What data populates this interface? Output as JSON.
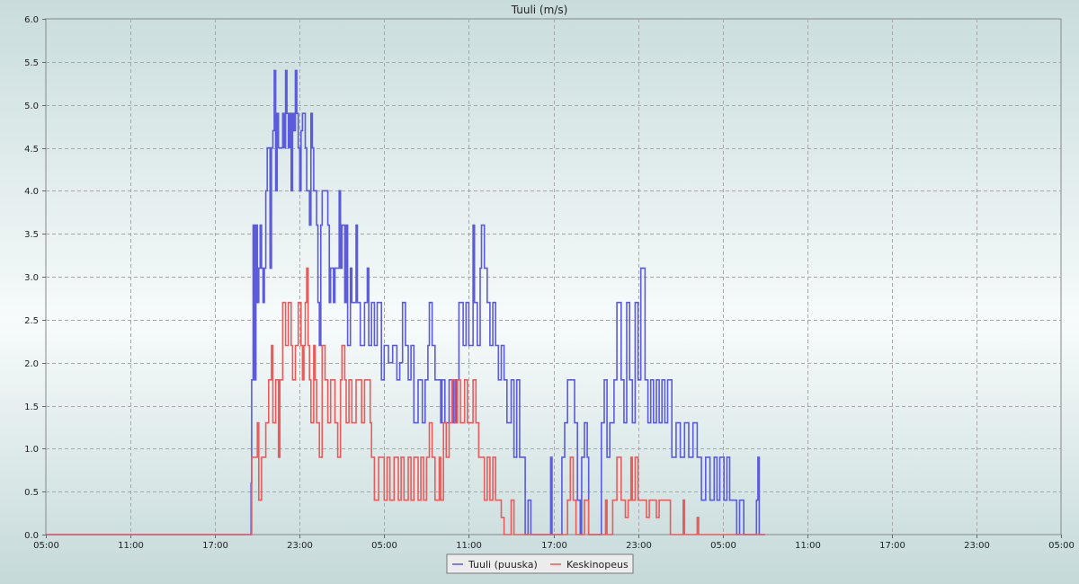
{
  "chart_data": {
    "type": "line",
    "step": true,
    "title": "Tuuli (m/s)",
    "xlabel": "",
    "ylabel": "",
    "ylim": [
      0,
      6
    ],
    "xlim": [
      "05:00",
      "05:00 (+2 d)"
    ],
    "x_ticks": [
      "05:00",
      "11:00",
      "17:00",
      "23:00",
      "05:00",
      "11:00",
      "17:00",
      "23:00",
      "05:00",
      "11:00",
      "17:00",
      "23:00",
      "05:00"
    ],
    "y_ticks": [
      "0.0",
      "0.5",
      "1.0",
      "1.5",
      "2.0",
      "2.5",
      "3.0",
      "3.5",
      "4.0",
      "4.5",
      "5.0",
      "5.5",
      "6.0"
    ],
    "grid": true,
    "legend_position": "bottom-center",
    "hours_per_x_tick": 6,
    "series": [
      {
        "name": "Tuuli (puuska)",
        "color": "#5b5bdc",
        "points": [
          [
            0,
            0
          ],
          [
            14.5,
            0
          ],
          [
            14.55,
            0.6
          ],
          [
            14.6,
            1.8
          ],
          [
            14.7,
            3.6
          ],
          [
            14.8,
            1.8
          ],
          [
            14.9,
            3.6
          ],
          [
            15.0,
            2.7
          ],
          [
            15.1,
            3.1
          ],
          [
            15.2,
            3.6
          ],
          [
            15.3,
            3.1
          ],
          [
            15.4,
            2.7
          ],
          [
            15.5,
            3.1
          ],
          [
            15.6,
            4.0
          ],
          [
            15.7,
            4.5
          ],
          [
            15.9,
            3.1
          ],
          [
            16.0,
            4.5
          ],
          [
            16.1,
            4.7
          ],
          [
            16.2,
            5.4
          ],
          [
            16.3,
            4.0
          ],
          [
            16.4,
            4.9
          ],
          [
            16.5,
            4.5
          ],
          [
            16.8,
            4.9
          ],
          [
            16.9,
            4.5
          ],
          [
            17.0,
            5.4
          ],
          [
            17.1,
            4.9
          ],
          [
            17.2,
            4.5
          ],
          [
            17.3,
            4.9
          ],
          [
            17.4,
            4.0
          ],
          [
            17.5,
            4.9
          ],
          [
            17.6,
            4.7
          ],
          [
            17.7,
            5.4
          ],
          [
            17.8,
            4.9
          ],
          [
            17.9,
            4.5
          ],
          [
            18.0,
            4.0
          ],
          [
            18.1,
            4.7
          ],
          [
            18.2,
            4.9
          ],
          [
            18.4,
            4.5
          ],
          [
            18.5,
            4.0
          ],
          [
            18.7,
            3.6
          ],
          [
            18.8,
            4.9
          ],
          [
            18.9,
            4.5
          ],
          [
            19.0,
            4.0
          ],
          [
            19.2,
            3.6
          ],
          [
            19.3,
            2.7
          ],
          [
            19.4,
            2.2
          ],
          [
            19.5,
            3.6
          ],
          [
            19.6,
            4.0
          ],
          [
            20.0,
            3.6
          ],
          [
            20.1,
            2.7
          ],
          [
            20.2,
            3.1
          ],
          [
            20.4,
            2.7
          ],
          [
            20.5,
            3.1
          ],
          [
            20.8,
            4.0
          ],
          [
            20.9,
            3.1
          ],
          [
            21.0,
            3.6
          ],
          [
            21.2,
            2.7
          ],
          [
            21.3,
            3.6
          ],
          [
            21.4,
            2.2
          ],
          [
            21.6,
            3.1
          ],
          [
            21.7,
            2.7
          ],
          [
            22.0,
            3.6
          ],
          [
            22.1,
            2.7
          ],
          [
            22.3,
            2.2
          ],
          [
            22.6,
            2.7
          ],
          [
            22.8,
            3.1
          ],
          [
            22.9,
            2.2
          ],
          [
            23.1,
            2.7
          ],
          [
            23.3,
            2.2
          ],
          [
            23.5,
            2.7
          ],
          [
            23.8,
            1.8
          ],
          [
            24.0,
            2.2
          ],
          [
            24.3,
            2.0
          ],
          [
            24.6,
            2.2
          ],
          [
            24.9,
            1.8
          ],
          [
            25.1,
            2.0
          ],
          [
            25.3,
            2.7
          ],
          [
            25.5,
            2.2
          ],
          [
            25.7,
            1.8
          ],
          [
            25.9,
            2.2
          ],
          [
            26.1,
            1.3
          ],
          [
            26.4,
            1.8
          ],
          [
            26.7,
            1.3
          ],
          [
            26.9,
            1.8
          ],
          [
            27.1,
            2.2
          ],
          [
            27.2,
            2.7
          ],
          [
            27.4,
            2.2
          ],
          [
            27.6,
            1.8
          ],
          [
            28.0,
            1.3
          ],
          [
            28.1,
            1.8
          ],
          [
            28.3,
            1.3
          ],
          [
            28.6,
            1.8
          ],
          [
            28.9,
            1.3
          ],
          [
            29.1,
            1.8
          ],
          [
            29.3,
            2.7
          ],
          [
            29.6,
            2.2
          ],
          [
            29.8,
            2.7
          ],
          [
            30.0,
            2.2
          ],
          [
            30.3,
            3.6
          ],
          [
            30.4,
            2.7
          ],
          [
            30.6,
            2.2
          ],
          [
            30.8,
            3.1
          ],
          [
            30.9,
            3.6
          ],
          [
            31.1,
            3.1
          ],
          [
            31.3,
            2.7
          ],
          [
            31.5,
            2.2
          ],
          [
            31.7,
            2.7
          ],
          [
            31.9,
            2.2
          ],
          [
            32.1,
            1.8
          ],
          [
            32.3,
            2.2
          ],
          [
            32.5,
            1.8
          ],
          [
            32.7,
            1.3
          ],
          [
            33.0,
            1.8
          ],
          [
            33.2,
            0.9
          ],
          [
            33.4,
            1.8
          ],
          [
            33.6,
            0.9
          ],
          [
            34.0,
            0
          ],
          [
            34.2,
            0.4
          ],
          [
            34.4,
            0
          ],
          [
            35.8,
            0.9
          ],
          [
            35.9,
            0
          ],
          [
            36.6,
            0.9
          ],
          [
            36.8,
            1.3
          ],
          [
            37.0,
            1.8
          ],
          [
            37.5,
            1.3
          ],
          [
            37.7,
            0.4
          ],
          [
            37.9,
            0
          ],
          [
            38.0,
            0.9
          ],
          [
            38.2,
            1.3
          ],
          [
            38.4,
            0.9
          ],
          [
            38.5,
            0
          ],
          [
            39.4,
            1.3
          ],
          [
            39.6,
            1.8
          ],
          [
            39.8,
            0.9
          ],
          [
            40.0,
            1.3
          ],
          [
            40.3,
            1.8
          ],
          [
            40.5,
            2.7
          ],
          [
            40.8,
            1.8
          ],
          [
            41.0,
            1.3
          ],
          [
            41.2,
            2.7
          ],
          [
            41.4,
            1.8
          ],
          [
            41.6,
            1.3
          ],
          [
            41.8,
            2.7
          ],
          [
            42.0,
            1.8
          ],
          [
            42.2,
            3.1
          ],
          [
            42.5,
            1.8
          ],
          [
            42.7,
            1.3
          ],
          [
            42.9,
            1.8
          ],
          [
            43.1,
            1.3
          ],
          [
            43.3,
            1.8
          ],
          [
            43.5,
            1.3
          ],
          [
            43.7,
            1.8
          ],
          [
            43.9,
            1.3
          ],
          [
            44.1,
            1.8
          ],
          [
            44.4,
            0.9
          ],
          [
            44.7,
            1.3
          ],
          [
            45.0,
            0.9
          ],
          [
            45.3,
            1.3
          ],
          [
            45.6,
            0.9
          ],
          [
            45.9,
            1.3
          ],
          [
            46.2,
            0.9
          ],
          [
            46.5,
            0.4
          ],
          [
            46.8,
            0.9
          ],
          [
            47.1,
            0.4
          ],
          [
            47.4,
            0.9
          ],
          [
            47.6,
            0.4
          ],
          [
            47.8,
            0.9
          ],
          [
            48.1,
            0.4
          ],
          [
            48.3,
            0.9
          ],
          [
            48.5,
            0.4
          ],
          [
            49.0,
            0
          ],
          [
            49.2,
            0.4
          ],
          [
            49.5,
            0
          ],
          [
            50.4,
            0.4
          ],
          [
            50.5,
            0.9
          ],
          [
            50.6,
            0
          ],
          [
            50.8,
            0
          ],
          [
            51.0,
            0
          ]
        ]
      },
      {
        "name": "Keskinopeus",
        "color": "#e85c5c",
        "points": [
          [
            0,
            0
          ],
          [
            14.5,
            0
          ],
          [
            14.6,
            0.9
          ],
          [
            15.0,
            1.3
          ],
          [
            15.1,
            0.4
          ],
          [
            15.3,
            0.9
          ],
          [
            15.6,
            1.3
          ],
          [
            15.8,
            1.8
          ],
          [
            16.0,
            2.2
          ],
          [
            16.1,
            1.3
          ],
          [
            16.3,
            1.8
          ],
          [
            16.5,
            0.9
          ],
          [
            16.6,
            1.8
          ],
          [
            16.8,
            2.7
          ],
          [
            17.0,
            2.2
          ],
          [
            17.2,
            2.7
          ],
          [
            17.4,
            2.2
          ],
          [
            17.5,
            1.8
          ],
          [
            17.7,
            2.2
          ],
          [
            17.9,
            2.7
          ],
          [
            18.1,
            2.2
          ],
          [
            18.2,
            1.8
          ],
          [
            18.3,
            2.2
          ],
          [
            18.4,
            2.7
          ],
          [
            18.5,
            3.1
          ],
          [
            18.6,
            2.2
          ],
          [
            18.7,
            1.8
          ],
          [
            18.8,
            1.3
          ],
          [
            19.0,
            2.2
          ],
          [
            19.1,
            1.8
          ],
          [
            19.2,
            1.3
          ],
          [
            19.4,
            0.9
          ],
          [
            19.6,
            2.2
          ],
          [
            19.8,
            1.8
          ],
          [
            20.0,
            1.3
          ],
          [
            20.2,
            1.8
          ],
          [
            20.5,
            1.3
          ],
          [
            20.7,
            0.9
          ],
          [
            20.9,
            1.8
          ],
          [
            21.0,
            2.2
          ],
          [
            21.2,
            1.8
          ],
          [
            21.3,
            1.3
          ],
          [
            21.5,
            1.8
          ],
          [
            21.7,
            1.3
          ],
          [
            22.0,
            1.8
          ],
          [
            22.4,
            1.3
          ],
          [
            22.6,
            1.8
          ],
          [
            23.0,
            1.3
          ],
          [
            23.1,
            0.9
          ],
          [
            23.3,
            0.4
          ],
          [
            23.6,
            0.9
          ],
          [
            24.0,
            0.4
          ],
          [
            24.2,
            0.9
          ],
          [
            24.4,
            0.4
          ],
          [
            24.7,
            0.9
          ],
          [
            25.0,
            0.4
          ],
          [
            25.2,
            0.9
          ],
          [
            25.4,
            0.4
          ],
          [
            25.7,
            0.9
          ],
          [
            25.9,
            0.4
          ],
          [
            26.1,
            0.9
          ],
          [
            26.4,
            0.4
          ],
          [
            26.6,
            0.9
          ],
          [
            26.8,
            0.4
          ],
          [
            27.0,
            0.9
          ],
          [
            27.2,
            1.3
          ],
          [
            27.4,
            0.9
          ],
          [
            27.6,
            0.4
          ],
          [
            27.9,
            0.9
          ],
          [
            28.0,
            0.4
          ],
          [
            28.2,
            1.3
          ],
          [
            28.4,
            0.9
          ],
          [
            28.6,
            1.3
          ],
          [
            28.8,
            1.8
          ],
          [
            29.0,
            1.3
          ],
          [
            29.2,
            1.8
          ],
          [
            29.4,
            1.3
          ],
          [
            29.7,
            1.8
          ],
          [
            29.9,
            1.3
          ],
          [
            30.3,
            1.8
          ],
          [
            30.5,
            1.3
          ],
          [
            30.7,
            0.9
          ],
          [
            31.1,
            0.4
          ],
          [
            31.3,
            0.9
          ],
          [
            31.5,
            0.4
          ],
          [
            31.7,
            0.9
          ],
          [
            31.9,
            0.4
          ],
          [
            32.3,
            0.2
          ],
          [
            32.5,
            0
          ],
          [
            33.0,
            0.4
          ],
          [
            33.2,
            0
          ],
          [
            34.4,
            0
          ],
          [
            36.3,
            0
          ],
          [
            37.0,
            0.4
          ],
          [
            37.2,
            0.9
          ],
          [
            37.4,
            0.4
          ],
          [
            37.6,
            0
          ],
          [
            38.0,
            0
          ],
          [
            38.2,
            0.4
          ],
          [
            38.5,
            0
          ],
          [
            39.7,
            0.4
          ],
          [
            39.8,
            0
          ],
          [
            40.0,
            0
          ],
          [
            40.2,
            0.4
          ],
          [
            40.5,
            0.9
          ],
          [
            40.8,
            0.4
          ],
          [
            41.1,
            0.2
          ],
          [
            41.3,
            0.4
          ],
          [
            41.5,
            0.9
          ],
          [
            41.6,
            0.4
          ],
          [
            41.8,
            0.9
          ],
          [
            42.0,
            0.4
          ],
          [
            42.6,
            0.2
          ],
          [
            42.8,
            0.4
          ],
          [
            43.1,
            0.4
          ],
          [
            43.3,
            0.2
          ],
          [
            43.5,
            0.4
          ],
          [
            44.2,
            0.4
          ],
          [
            44.3,
            0
          ],
          [
            45.0,
            0
          ],
          [
            45.2,
            0.4
          ],
          [
            45.3,
            0
          ],
          [
            46.0,
            0
          ],
          [
            46.2,
            0.2
          ],
          [
            46.3,
            0
          ],
          [
            51.0,
            0
          ]
        ]
      }
    ]
  }
}
